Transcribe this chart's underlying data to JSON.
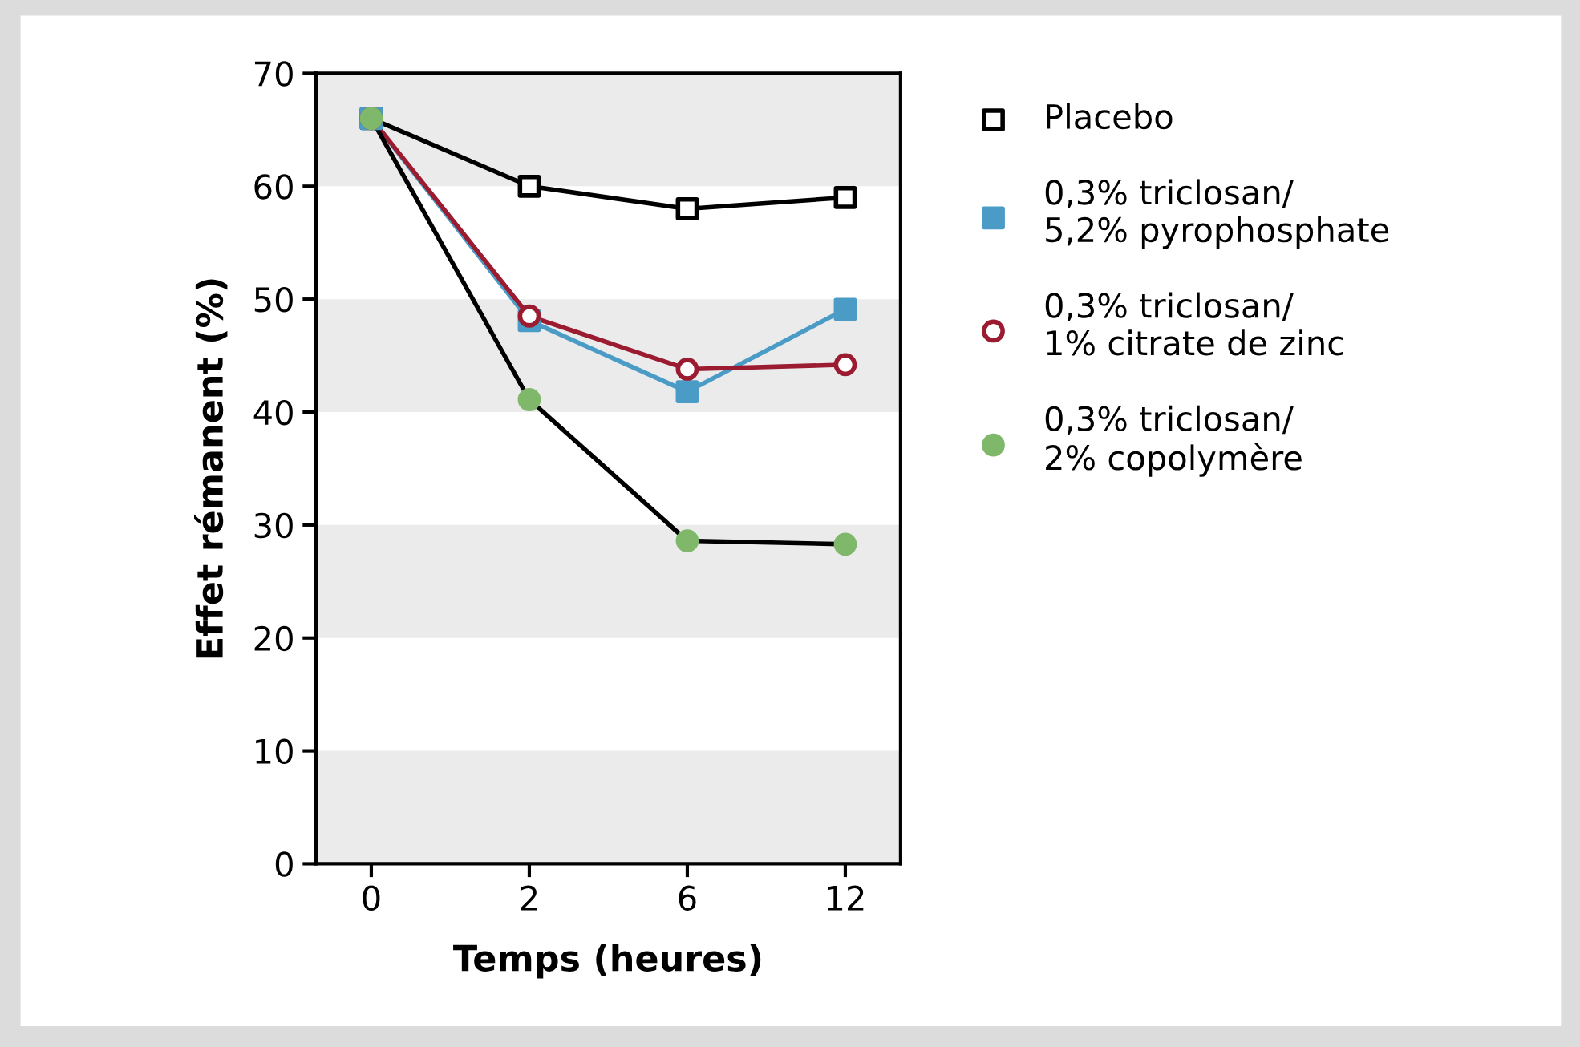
{
  "chart_data": {
    "type": "line",
    "xlabel": "Temps (heures)",
    "ylabel": "Effet rémanent (%)",
    "categories": [
      "0",
      "2",
      "6",
      "12"
    ],
    "series": [
      {
        "name": "Placebo",
        "color": "#000000",
        "marker": "square",
        "colors": [
          "#ffffff",
          "#ffffff",
          "#ffffff",
          "#ffffff"
        ],
        "values": [
          66,
          60,
          58,
          59
        ]
      },
      {
        "name": "0,3% triclosan/\n5,2% pyrophosphate",
        "color": "#4a9cc6",
        "marker": "square",
        "colors": [
          "#4a9cc6",
          "#4a9cc6",
          "#4a9cc6",
          "#4a9cc6"
        ],
        "values": [
          66,
          48.1,
          41.8,
          49.1
        ]
      },
      {
        "name": "0,3% triclosan/\n1% citrate de zinc",
        "color": "#9b1b30",
        "marker": "circle",
        "colors": [
          "#ffffff",
          "#ffffff",
          "#ffffff",
          "#ffffff"
        ],
        "values": [
          66,
          48.5,
          43.8,
          44.2
        ]
      },
      {
        "name": "0,3% triclosan/\n2% copolymère",
        "color": "#000000",
        "marker": "circle",
        "colors": [
          "#7fb86a",
          "#7fb86a",
          "#7fb86a",
          "#7fb86a"
        ],
        "values": [
          66,
          41.1,
          28.6,
          28.3
        ]
      }
    ],
    "ylim": [
      0,
      70
    ],
    "yticks": [
      0,
      10,
      20,
      30,
      40,
      50,
      60,
      70
    ],
    "bands": [
      {
        "axis": "y",
        "from": 0,
        "to": 10,
        "color": "#ebebeb"
      },
      {
        "axis": "y",
        "from": 20,
        "to": 30,
        "color": "#ebebeb"
      },
      {
        "axis": "y",
        "from": 40,
        "to": 50,
        "color": "#ebebeb"
      },
      {
        "axis": "y",
        "from": 60,
        "to": 70,
        "color": "#ebebeb"
      }
    ],
    "legend": "right"
  }
}
